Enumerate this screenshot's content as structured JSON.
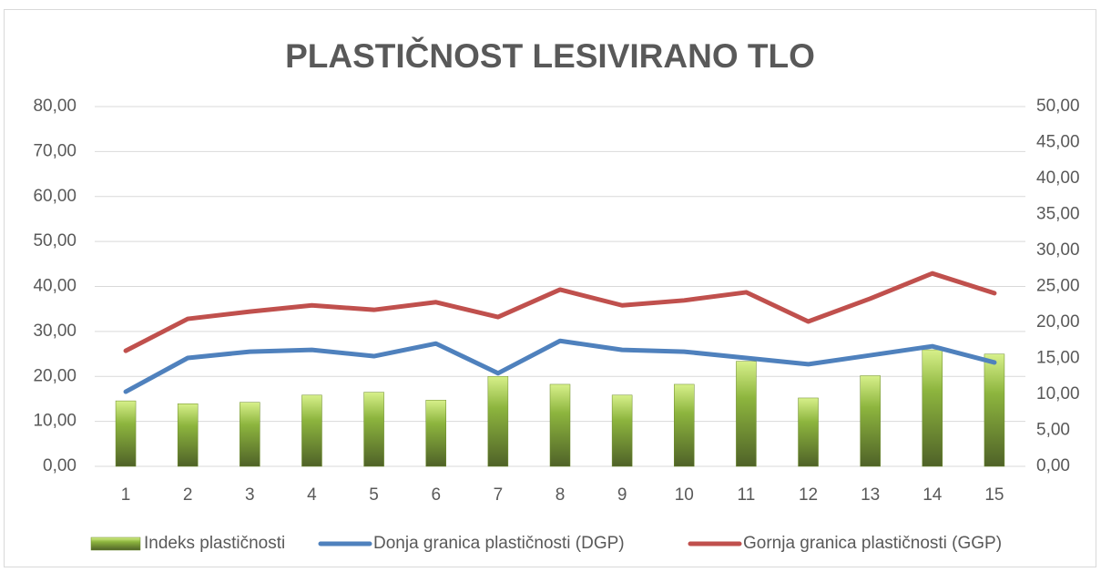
{
  "chart_data": {
    "type": "bar+line",
    "title": "PLASTIČNOST LESIVIRANO TLO",
    "categories": [
      "1",
      "2",
      "3",
      "4",
      "5",
      "6",
      "7",
      "8",
      "9",
      "10",
      "11",
      "12",
      "13",
      "14",
      "15"
    ],
    "series": [
      {
        "name": "Indeks plastičnosti",
        "type": "bar",
        "axis": "y2",
        "color": "#8db53e",
        "values": [
          9.1,
          8.7,
          8.9,
          9.9,
          10.3,
          9.2,
          12.5,
          11.4,
          9.9,
          11.4,
          14.6,
          9.5,
          12.6,
          16.2,
          15.6
        ]
      },
      {
        "name": "Donja granica plastičnosti (DGP)",
        "type": "line",
        "color": "#4f81bd",
        "values": [
          16.6,
          24.1,
          25.5,
          25.9,
          24.5,
          27.3,
          20.7,
          27.9,
          25.9,
          25.5,
          24.1,
          22.7,
          24.7,
          26.7,
          23.1
        ]
      },
      {
        "name": "Gornja granica plastičnosti (GGP)",
        "type": "line",
        "color": "#c0504d",
        "values": [
          25.7,
          32.8,
          34.4,
          35.8,
          34.8,
          36.5,
          33.2,
          39.3,
          35.8,
          36.9,
          38.7,
          32.2,
          37.3,
          42.9,
          38.5
        ]
      }
    ],
    "ylim": [
      0,
      80
    ],
    "yticks": [
      {
        "value": 0,
        "label": "0,00"
      },
      {
        "value": 10,
        "label": "10,00"
      },
      {
        "value": 20,
        "label": "20,00"
      },
      {
        "value": 30,
        "label": "30,00"
      },
      {
        "value": 40,
        "label": "40,00"
      },
      {
        "value": 50,
        "label": "50,00"
      },
      {
        "value": 60,
        "label": "60,00"
      },
      {
        "value": 70,
        "label": "70,00"
      },
      {
        "value": 80,
        "label": "80,00"
      }
    ],
    "y2lim": [
      0,
      50
    ],
    "y2ticks": [
      {
        "value": 0,
        "label": "0,00"
      },
      {
        "value": 5,
        "label": "5,00"
      },
      {
        "value": 10,
        "label": "10,00"
      },
      {
        "value": 15,
        "label": "15,00"
      },
      {
        "value": 20,
        "label": "20,00"
      },
      {
        "value": 25,
        "label": "25,00"
      },
      {
        "value": 30,
        "label": "30,00"
      },
      {
        "value": 35,
        "label": "35,00"
      },
      {
        "value": 40,
        "label": "40,00"
      },
      {
        "value": 45,
        "label": "45,00"
      },
      {
        "value": 50,
        "label": "50,00"
      }
    ],
    "grid": true,
    "legend": "bottom"
  }
}
